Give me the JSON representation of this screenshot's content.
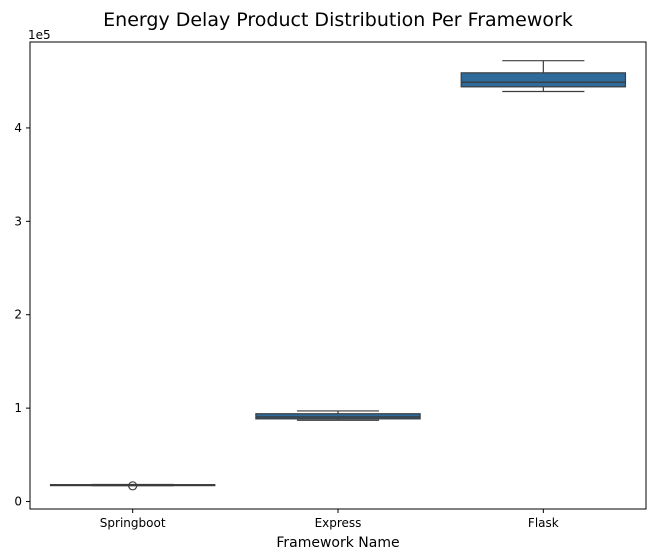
{
  "chart_data": {
    "type": "box",
    "title": "Energy Delay Product Distribution Per Framework",
    "xlabel": "Framework Name",
    "ylabel": "",
    "y_scale_label": "1e5",
    "y_scale_factor": 100000,
    "ylim": [
      -0.08,
      4.92
    ],
    "yticks": [
      {
        "value": 0,
        "label": "0"
      },
      {
        "value": 1,
        "label": "1"
      },
      {
        "value": 2,
        "label": "2"
      },
      {
        "value": 3,
        "label": "3"
      },
      {
        "value": 4,
        "label": "4"
      }
    ],
    "categories": [
      "Springboot",
      "Express",
      "Flask"
    ],
    "boxes": [
      {
        "category": "Springboot",
        "whisker_low": 0.17,
        "q1": 0.172,
        "median": 0.176,
        "q3": 0.181,
        "whisker_high": 0.183,
        "outliers": [
          0.168
        ]
      },
      {
        "category": "Express",
        "whisker_low": 0.87,
        "q1": 0.885,
        "median": 0.905,
        "q3": 0.94,
        "whisker_high": 0.97,
        "outliers": []
      },
      {
        "category": "Flask",
        "whisker_low": 4.39,
        "q1": 4.44,
        "median": 4.49,
        "q3": 4.59,
        "whisker_high": 4.72,
        "outliers": []
      }
    ],
    "box_color": "#2e6b9a",
    "line_color": "#3d3d3d",
    "grid": false,
    "legend": "none"
  }
}
